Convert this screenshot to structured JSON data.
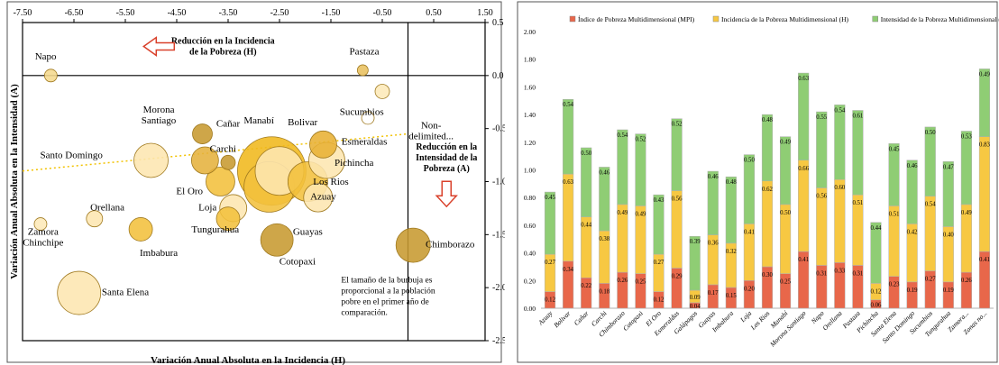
{
  "chart_data": [
    {
      "type": "scatter",
      "subtype": "bubble",
      "title": "",
      "xlabel": "Variación Anual Absoluta en la Incidencia (H)",
      "ylabel": "Variación Anual Absoluta en la Intensidad (A)",
      "xlim": [
        -7.5,
        1.5
      ],
      "ylim": [
        -2.5,
        0.5
      ],
      "x_ticks": [
        "-7.50",
        "-6.50",
        "-5.50",
        "-4.50",
        "-3.50",
        "-2.50",
        "-1.50",
        "-0.50",
        "0.50",
        "1.50"
      ],
      "y_ticks": [
        "0.5",
        "0.0",
        "-0.5",
        "-1.0",
        "-1.5",
        "-2.0",
        "-2.5"
      ],
      "grid": false,
      "reference_lines": {
        "x": 0.0,
        "y": 0.0
      },
      "trendline": {
        "style": "dotted",
        "color": "#f2c200",
        "from": [
          -7.5,
          -0.9
        ],
        "to": [
          0.0,
          -0.55
        ]
      },
      "annotations": [
        {
          "text_lines": [
            "Reducción en la Incidencia",
            "de la Pobreza (H)"
          ],
          "arrow": "left",
          "x": -3.6,
          "y": 0.3
        },
        {
          "text_lines": [
            "Reducción en la",
            "Intensidad de la",
            "Pobreza (A)"
          ],
          "arrow": "down",
          "x": 0.75,
          "y": -0.7
        },
        {
          "text_lines": [
            "El tamaño de la burbuja es",
            "proporcional a la población",
            "pobre en el primer año de",
            "comparación."
          ],
          "x": -1.3,
          "y": -1.95
        }
      ],
      "points": [
        {
          "name": "Napo",
          "label": [
            "Napo"
          ],
          "x": -6.95,
          "y": 0.0,
          "r": 7,
          "color": "#f5d98e",
          "lx": -7.05,
          "ly": 0.15
        },
        {
          "name": "Pastaza",
          "label": [
            "Pastaza"
          ],
          "x": -0.88,
          "y": 0.05,
          "r": 6,
          "color": "#e8c060",
          "lx": -0.85,
          "ly": 0.2
        },
        {
          "name": "Sucumbios",
          "label": [
            "Sucumbios"
          ],
          "x": -0.5,
          "y": -0.15,
          "r": 8,
          "color": "#fde9b8",
          "lx": -0.9,
          "ly": -0.37
        },
        {
          "name": "Non-delimited",
          "label": [
            "Non-",
            "delimited..."
          ],
          "x": -0.78,
          "y": -0.4,
          "r": 7,
          "color": "#ffffff",
          "lx": 0.45,
          "ly": -0.5
        },
        {
          "name": "Morona Santiago",
          "label": [
            "Morona",
            "Santiago"
          ],
          "x": -4.0,
          "y": -0.55,
          "r": 11,
          "color": "#c79a30",
          "lx": -4.85,
          "ly": -0.35
        },
        {
          "name": "Cañar",
          "label": [
            "Cañar"
          ],
          "x": -3.95,
          "y": -0.8,
          "r": 15,
          "color": "#e5b23e",
          "lx": -3.5,
          "ly": -0.48
        },
        {
          "name": "Carchi",
          "label": [
            "Carchi"
          ],
          "x": -3.5,
          "y": -0.82,
          "r": 8,
          "color": "#c79a30",
          "lx": -3.6,
          "ly": -0.72
        },
        {
          "name": "Manabí",
          "label": [
            "Manabí"
          ],
          "x": -2.65,
          "y": -0.9,
          "r": 38,
          "color": "#f0b81c",
          "lx": -2.9,
          "ly": -0.45
        },
        {
          "name": "Bolivar",
          "label": [
            "Bolivar"
          ],
          "x": -2.5,
          "y": -0.9,
          "r": 27,
          "color": "#fde6b0",
          "lx": -2.05,
          "ly": -0.47
        },
        {
          "name": "Esmeraldas",
          "label": [
            "Esmeraldas"
          ],
          "x": -1.65,
          "y": -0.65,
          "r": 15,
          "color": "#e8b133",
          "lx": -0.85,
          "ly": -0.65
        },
        {
          "name": "Pichincha",
          "label": [
            "Pichincha"
          ],
          "x": -1.58,
          "y": -0.8,
          "r": 20,
          "color": "#fde6b0",
          "lx": -1.05,
          "ly": -0.85
        },
        {
          "name": "Santo Domingo",
          "label": [
            "Santo Domingo"
          ],
          "x": -5.0,
          "y": -0.8,
          "r": 19,
          "color": "#fde6b0",
          "lx": -6.55,
          "ly": -0.78
        },
        {
          "name": "El Oro",
          "label": [
            "El Oro"
          ],
          "x": -3.65,
          "y": -1.0,
          "r": 16,
          "color": "#f3c03c",
          "lx": -4.25,
          "ly": -1.12
        },
        {
          "name": "Loja",
          "label": [
            "Loja"
          ],
          "x": -3.4,
          "y": -1.25,
          "r": 15,
          "color": "#fde6b0",
          "lx": -3.9,
          "ly": -1.27
        },
        {
          "name": "Los Rios",
          "label": [
            "Los Rios"
          ],
          "x": -1.95,
          "y": -1.0,
          "r": 22,
          "color": "#f3c03c",
          "lx": -1.5,
          "ly": -1.03
        },
        {
          "name": "Azuay",
          "label": [
            "Azuay"
          ],
          "x": -1.75,
          "y": -1.15,
          "r": 16,
          "color": "#fde6b0",
          "lx": -1.65,
          "ly": -1.17
        },
        {
          "name": "Guayas",
          "label": [
            "Guayas"
          ],
          "x": -2.7,
          "y": -1.05,
          "r": 28,
          "color": "#f3c03c",
          "lx": -1.95,
          "ly": -1.5
        },
        {
          "name": "Orellana",
          "label": [
            "Orellana"
          ],
          "x": -6.1,
          "y": -1.35,
          "r": 9,
          "color": "#fde6b0",
          "lx": -5.85,
          "ly": -1.27
        },
        {
          "name": "Zamora Chinchipe",
          "label": [
            "Zamora",
            "Chinchipe"
          ],
          "x": -7.15,
          "y": -1.4,
          "r": 7,
          "color": "#fde9b8",
          "lx": -7.1,
          "ly": -1.5
        },
        {
          "name": "Imbabura",
          "label": [
            "Imbabura"
          ],
          "x": -5.2,
          "y": -1.45,
          "r": 13,
          "color": "#f3c03c",
          "lx": -4.85,
          "ly": -1.7
        },
        {
          "name": "Tungurahua",
          "label": [
            "Tungurahua"
          ],
          "x": -3.5,
          "y": -1.35,
          "r": 13,
          "color": "#f3c03c",
          "lx": -3.75,
          "ly": -1.48
        },
        {
          "name": "Cotopaxi",
          "label": [
            "Cotopaxi"
          ],
          "x": -2.55,
          "y": -1.55,
          "r": 18,
          "color": "#c79a30",
          "lx": -2.15,
          "ly": -1.78
        },
        {
          "name": "Chimborazo",
          "label": [
            "Chimborazo"
          ],
          "x": 0.1,
          "y": -1.6,
          "r": 19,
          "color": "#c79a30",
          "lx": 0.82,
          "ly": -1.62
        },
        {
          "name": "Santa Elena",
          "label": [
            "Santa Elena"
          ],
          "x": -6.4,
          "y": -2.05,
          "r": 24,
          "color": "#fde6b0",
          "lx": -5.5,
          "ly": -2.07
        }
      ]
    },
    {
      "type": "bar",
      "stacked": true,
      "title": "",
      "xlabel": "",
      "ylabel": "",
      "ylim": [
        0,
        2.0
      ],
      "y_ticks": [
        "2.00",
        "1.80",
        "1.60",
        "1.40",
        "1.20",
        "1.00",
        "0.80",
        "0.60",
        "0.40",
        "0.20",
        "0.00"
      ],
      "legend_position": "top",
      "categories": [
        "Azuay",
        "Bolivar",
        "Cañar",
        "Carchi",
        "Chimborazo",
        "Cotopaxi",
        "El Oro",
        "Esmeraldas",
        "Galápagos",
        "Guayas",
        "Imbabura",
        "Loja",
        "Los Rios",
        "Manabí",
        "Morona Santiago",
        "Napo",
        "Orellana",
        "Pastaza",
        "Pichincha",
        "Santa Elena",
        "Santo Domingo",
        "Sucumbios",
        "Tungurahua",
        "Zamora...",
        "Zonas no..."
      ],
      "series": [
        {
          "name": "Índice de Pobreza Multidimensional (MPI)",
          "color": "#e8674a",
          "values": [
            0.12,
            0.34,
            0.22,
            0.18,
            0.26,
            0.25,
            0.12,
            0.29,
            0.04,
            0.17,
            0.15,
            0.2,
            0.3,
            0.25,
            0.41,
            0.31,
            0.33,
            0.31,
            0.06,
            0.23,
            0.19,
            0.27,
            0.19,
            0.26,
            0.41
          ]
        },
        {
          "name": "Incidencia de la Pobreza Multidimensional (H)",
          "color": "#f7c842",
          "values": [
            0.27,
            0.63,
            0.44,
            0.38,
            0.49,
            0.49,
            0.27,
            0.56,
            0.09,
            0.36,
            0.32,
            0.41,
            0.62,
            0.5,
            0.66,
            0.56,
            0.6,
            0.51,
            0.12,
            0.51,
            0.42,
            0.54,
            0.4,
            0.49,
            0.83
          ]
        },
        {
          "name": "Intensidad de la Pobreza Multidimensional (A)",
          "color": "#8fcd74",
          "values": [
            0.45,
            0.54,
            0.5,
            0.46,
            0.54,
            0.52,
            0.43,
            0.52,
            0.39,
            0.46,
            0.48,
            0.5,
            0.48,
            0.49,
            0.63,
            0.55,
            0.54,
            0.61,
            0.44,
            0.45,
            0.46,
            0.5,
            0.47,
            0.53,
            0.49
          ]
        }
      ],
      "data_labels": [
        [
          "0.12",
          "0.34",
          "0.22",
          "0.18",
          "0.26",
          "0.25",
          "0.12",
          "0.29",
          "0.04",
          "0.17",
          "0.15",
          "0.20",
          "0.30",
          "0.25",
          "0.41",
          "0.31",
          "0.33",
          "0.31",
          "0.06",
          "0.23",
          "0.19",
          "0.27",
          "0.19",
          "0.26",
          "0.41"
        ],
        [
          "0.27",
          "0.63",
          "0.44",
          "0.38",
          "0.49",
          "0.49",
          "0.27",
          "0.56",
          "0.09",
          "0.36",
          "0.32",
          "0.41",
          "0.62",
          "0.50",
          "0.66",
          "0.56",
          "0.60",
          "0.51",
          "0.12",
          "0.51",
          "0.42",
          "0.54",
          "0.40",
          "0.49",
          "0.83"
        ],
        [
          "0.45",
          "0.54",
          "0.50",
          "0.46",
          "0.54",
          "0.52",
          "0.43",
          "0.52",
          "0.39",
          "0.46",
          "0.48",
          "0.50",
          "0.48",
          "0.49",
          "0.63",
          "0.55",
          "0.54",
          "0.61",
          "0.44",
          "0.45",
          "0.46",
          "0.50",
          "0.47",
          "0.53",
          "0.49"
        ]
      ]
    }
  ]
}
